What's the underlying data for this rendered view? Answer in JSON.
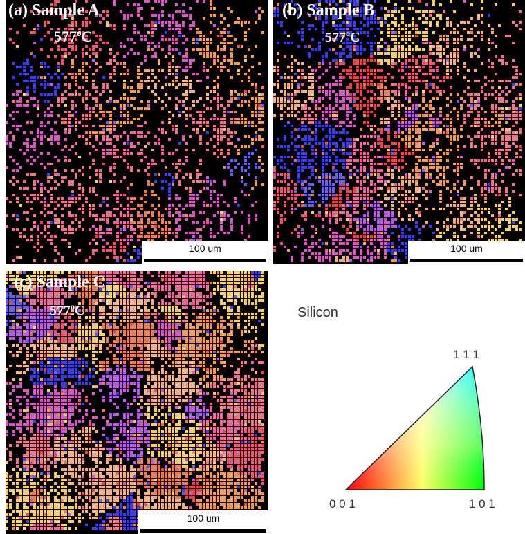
{
  "panels": [
    {
      "label": "(a) Sample A",
      "temperature": "577",
      "degree": "o",
      "unit": "C",
      "scale_bar": "100 um"
    },
    {
      "label": "(b) Sample B",
      "temperature": "577",
      "degree": "o",
      "unit": "C",
      "scale_bar": "100 um"
    },
    {
      "label": "(c) Sample C",
      "temperature": "577",
      "degree": "o",
      "unit": "C",
      "scale_bar": "100 um"
    }
  ],
  "legend": {
    "title": "Silicon",
    "corners": [
      "1 1 1",
      "0 0 1",
      "1 0 1"
    ]
  }
}
